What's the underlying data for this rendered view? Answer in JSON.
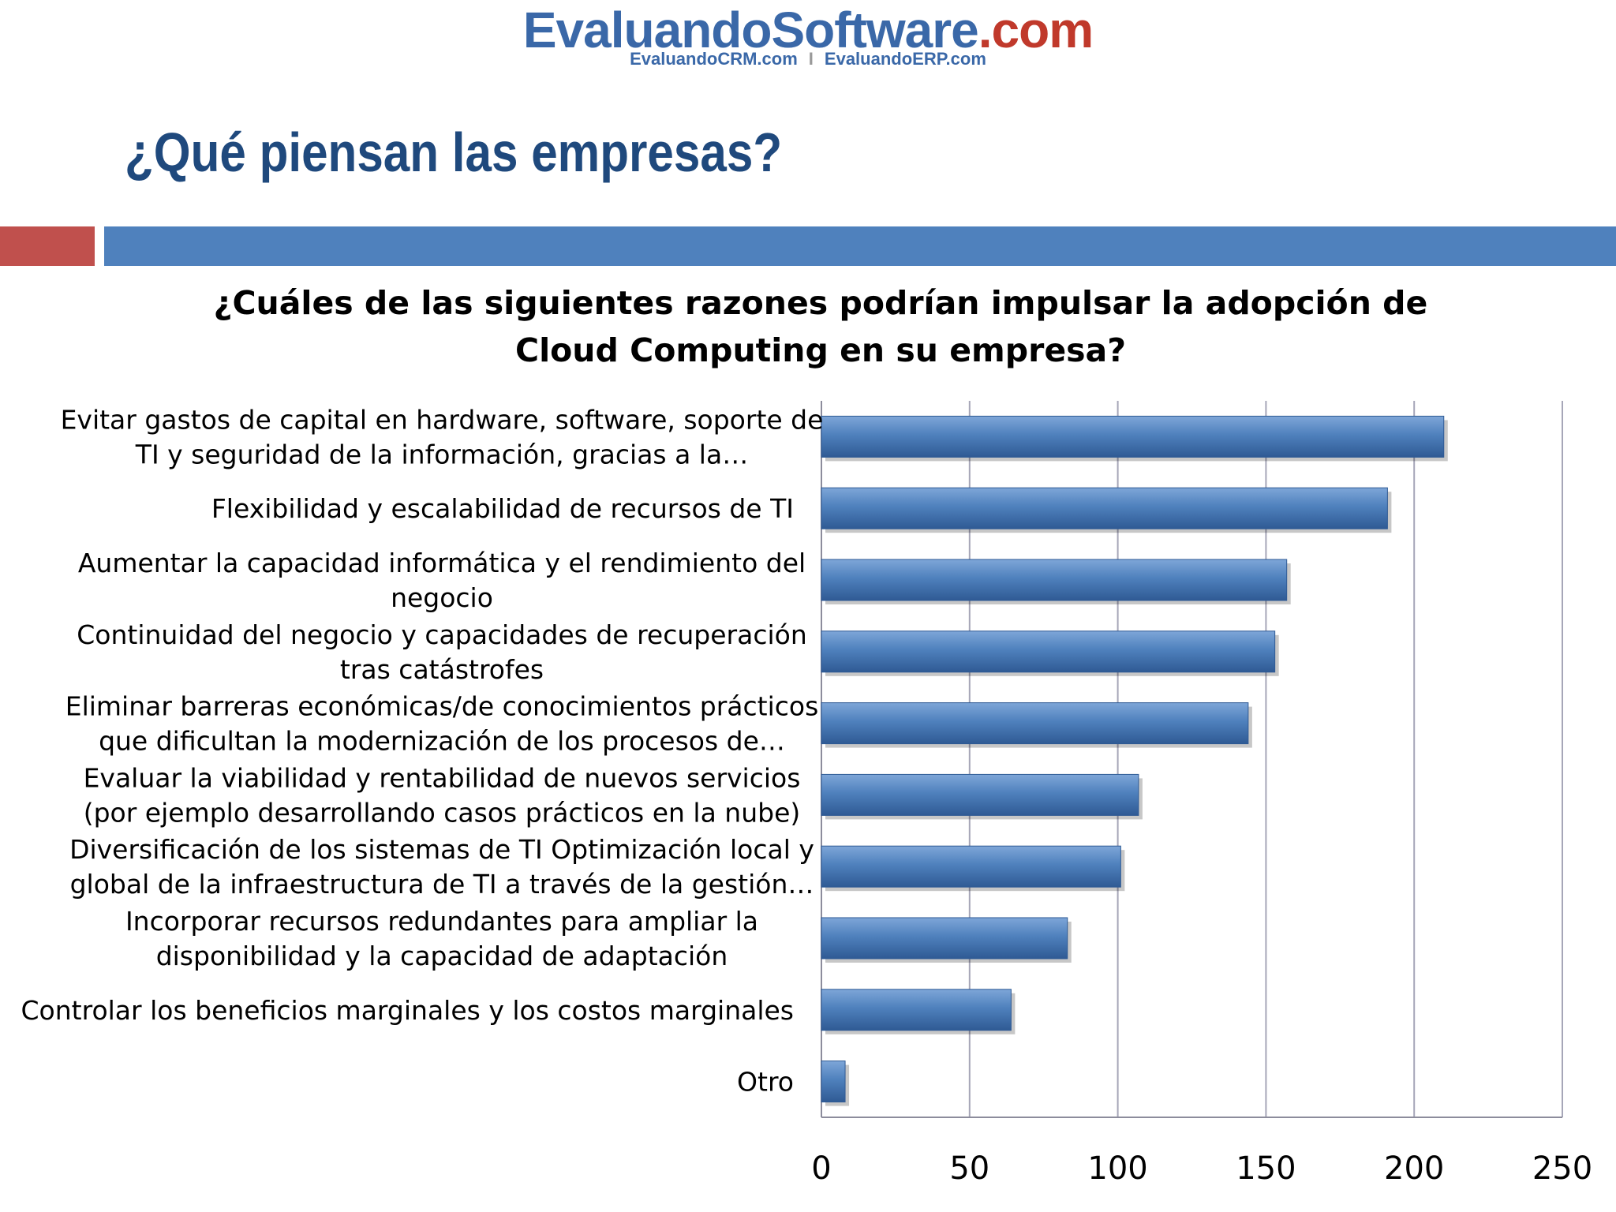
{
  "logo": {
    "main_part1": "Evaluando",
    "main_part2": "Software",
    "main_part3": ".com",
    "sub_left": "EvaluandoCRM.com",
    "sub_sep": "I",
    "sub_right": "EvaluandoERP.com"
  },
  "slide": {
    "title": "¿Qué piensan las empresas?"
  },
  "colors": {
    "bar": "#4f81bd",
    "bar_dark": "#2f5a94",
    "band_red": "#c0504d",
    "band_blue": "#4f81bd",
    "title_blue": "#1f497d",
    "gridline": "#a6a6b8"
  },
  "chart_data": {
    "type": "bar",
    "orientation": "horizontal",
    "title_line1": "¿Cuáles de las siguientes razones podrían impulsar la adopción de",
    "title_line2": "Cloud Computing en su empresa?",
    "xlim": [
      0,
      250
    ],
    "ticks": [
      "0",
      "50",
      "100",
      "150",
      "200",
      "250"
    ],
    "grid": true,
    "legend": "none",
    "categories": [
      [
        "Evitar gastos de capital en  hardware, software, soporte de",
        "TI y  seguridad de  la información, gracias a la…"
      ],
      [
        "Flexibilidad y escalabilidad de recursos de TI"
      ],
      [
        "Aumentar la capacidad informática y el rendimiento del",
        "negocio"
      ],
      [
        "Continuidad del negocio y capacidades de recuperación",
        "tras catástrofes"
      ],
      [
        "Eliminar barreras económicas/de conocimientos prácticos",
        "que dificultan la modernización de los procesos de…"
      ],
      [
        "Evaluar la viabilidad y rentabilidad de nuevos servicios",
        "(por ejemplo desarrollando casos prácticos en  la nube)"
      ],
      [
        "Diversificación de los sistemas de TI Optimización local  y",
        "global de la infraestructura de TI a través de la gestión…"
      ],
      [
        "Incorporar recursos redundantes para ampliar la",
        "disponibilidad y la capacidad de adaptación"
      ],
      [
        "Controlar los beneficios marginales y los costos marginales"
      ],
      [
        "Otro"
      ]
    ],
    "values": [
      210,
      191,
      157,
      153,
      144,
      107,
      101,
      83,
      64,
      8
    ]
  }
}
